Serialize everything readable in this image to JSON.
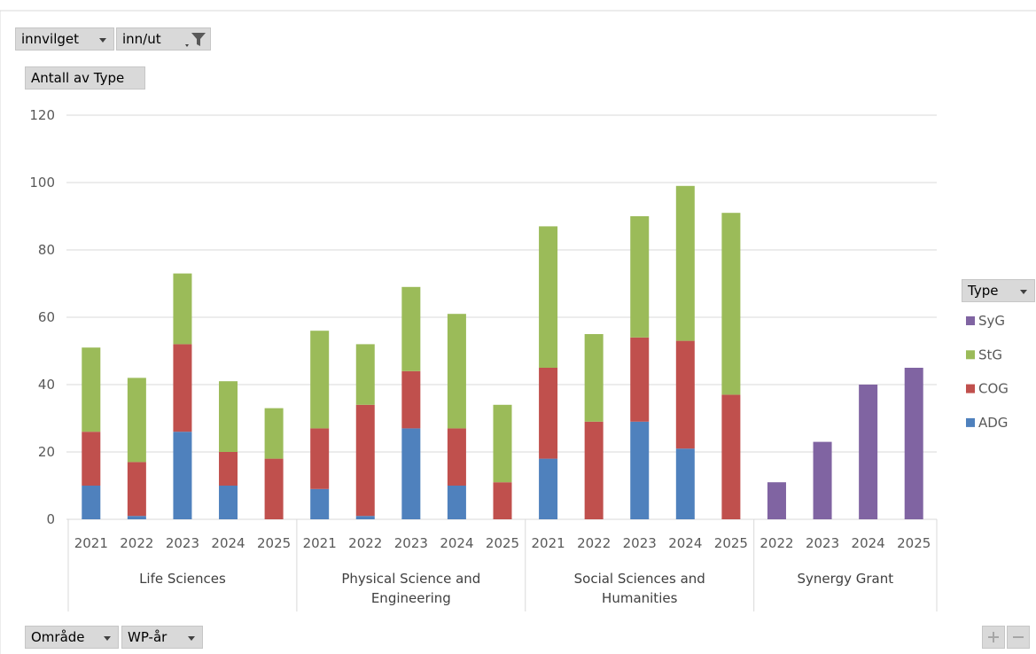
{
  "controls": {
    "filter1": "innvilget",
    "filter2": "inn/ut",
    "value_field": "Antall av Type",
    "row1": "Område",
    "row2": "WP-år",
    "legend_field": "Type"
  },
  "chart_data": {
    "type": "bar",
    "stacked": true,
    "groups": [
      {
        "label": "Life Sciences",
        "categories": [
          "2021",
          "2022",
          "2023",
          "2024",
          "2025"
        ]
      },
      {
        "label": "Physical Science and Engineering",
        "categories": [
          "2021",
          "2022",
          "2023",
          "2024",
          "2025"
        ]
      },
      {
        "label": "Social Sciences and Humanities",
        "categories": [
          "2021",
          "2022",
          "2023",
          "2024",
          "2025"
        ]
      },
      {
        "label": "Synergy Grant",
        "categories": [
          "2022",
          "2023",
          "2024",
          "2025"
        ]
      }
    ],
    "series": [
      {
        "name": "ADG",
        "color": "#4f81bd",
        "values": [
          10,
          1,
          26,
          10,
          0,
          9,
          1,
          27,
          10,
          0,
          18,
          0,
          29,
          21,
          0,
          null,
          null,
          null,
          null
        ]
      },
      {
        "name": "COG",
        "color": "#c0504d",
        "values": [
          16,
          16,
          26,
          10,
          18,
          18,
          33,
          17,
          17,
          11,
          27,
          29,
          25,
          32,
          37,
          null,
          null,
          null,
          null
        ]
      },
      {
        "name": "StG",
        "color": "#9bbb59",
        "values": [
          25,
          25,
          21,
          21,
          15,
          29,
          18,
          25,
          34,
          23,
          42,
          26,
          36,
          46,
          54,
          null,
          null,
          null,
          null
        ]
      },
      {
        "name": "SyG",
        "color": "#8064a2",
        "values": [
          null,
          null,
          null,
          null,
          null,
          null,
          null,
          null,
          null,
          null,
          null,
          null,
          null,
          null,
          null,
          11,
          23,
          40,
          45
        ]
      }
    ],
    "ylim": [
      0,
      120
    ],
    "yticks": [
      0,
      20,
      40,
      60,
      80,
      100,
      120
    ],
    "grid": true,
    "legend": "right"
  }
}
